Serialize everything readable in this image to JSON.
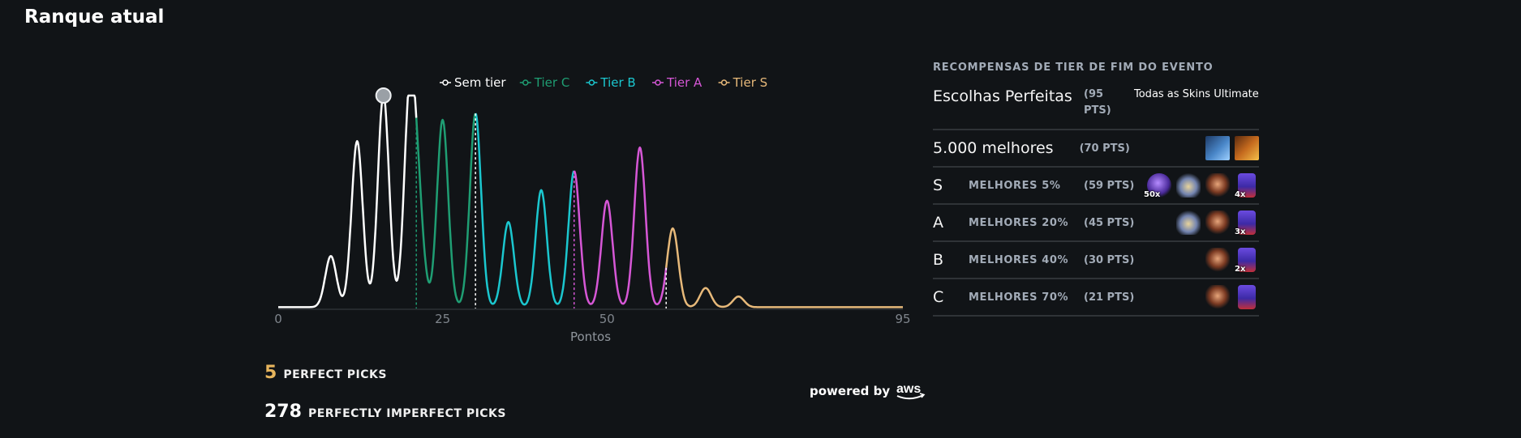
{
  "page": {
    "title": "Ranque atual"
  },
  "chart_data": {
    "type": "area",
    "xlabel": "Pontos",
    "xlim": [
      0,
      95
    ],
    "xticks": [
      "0",
      "25",
      "50",
      "95"
    ],
    "xtick_values": [
      0,
      25,
      50,
      95
    ],
    "legend": [
      {
        "name": "Sem tier",
        "color": "#ffffff"
      },
      {
        "name": "Tier C",
        "color": "#1f9e73"
      },
      {
        "name": "Tier B",
        "color": "#1bc7cf"
      },
      {
        "name": "Tier A",
        "color": "#d657d6"
      },
      {
        "name": "Tier S",
        "color": "#e7b97a"
      }
    ],
    "legend_position": "top",
    "peaks": [
      {
        "x": 8,
        "y": 0.24,
        "series": "Sem tier"
      },
      {
        "x": 12,
        "y": 0.78,
        "series": "Sem tier"
      },
      {
        "x": 16,
        "y": 1.0,
        "series": "Sem tier"
      },
      {
        "x": 20,
        "y": 0.97,
        "series": "Sem tier"
      },
      {
        "x": 21.3,
        "y": 0.43,
        "series": "Tier C"
      },
      {
        "x": 25,
        "y": 0.88,
        "series": "Tier C"
      },
      {
        "x": 30,
        "y": 0.91,
        "series": "Tier C"
      },
      {
        "x": 35,
        "y": 0.4,
        "series": "Tier B"
      },
      {
        "x": 40,
        "y": 0.55,
        "series": "Tier B"
      },
      {
        "x": 45,
        "y": 0.64,
        "series": "Tier A"
      },
      {
        "x": 50,
        "y": 0.5,
        "series": "Tier A"
      },
      {
        "x": 55,
        "y": 0.75,
        "series": "Tier A"
      },
      {
        "x": 60,
        "y": 0.37,
        "series": "Tier S"
      },
      {
        "x": 65,
        "y": 0.09,
        "series": "Tier S"
      },
      {
        "x": 70,
        "y": 0.05,
        "series": "Tier S"
      }
    ],
    "thresholds": [
      21,
      30,
      45,
      59
    ],
    "marker_x": 16
  },
  "stats": {
    "perfect_value": "5",
    "perfect_label": "PERFECT PICKS",
    "imperfect_value": "278",
    "imperfect_label": "PERFECTLY IMPERFECT PICKS",
    "powered_by": "powered by",
    "aws": "aws"
  },
  "rewards": {
    "title": "RECOMPENSAS DE TIER DE FIM DO EVENTO",
    "perfect": {
      "name": "Escolhas Perfeitas",
      "pts": "(95 PTS)",
      "desc": "Todas as Skins Ultimate"
    },
    "top": {
      "name": "5.000 melhores",
      "pts": "(70 PTS)"
    },
    "tiers": [
      {
        "letter": "S",
        "range": "MELHORES 5%",
        "pts": "(59 PTS)"
      },
      {
        "letter": "A",
        "range": "MELHORES 20%",
        "pts": "(45 PTS)"
      },
      {
        "letter": "B",
        "range": "MELHORES 40%",
        "pts": "(30 PTS)"
      },
      {
        "letter": "C",
        "range": "MELHORES 70%",
        "pts": "(21 PTS)"
      }
    ],
    "multipliers": {
      "orb": "50x",
      "s_chest": "4x",
      "a_chest": "3x",
      "b_chest": "2x"
    }
  }
}
